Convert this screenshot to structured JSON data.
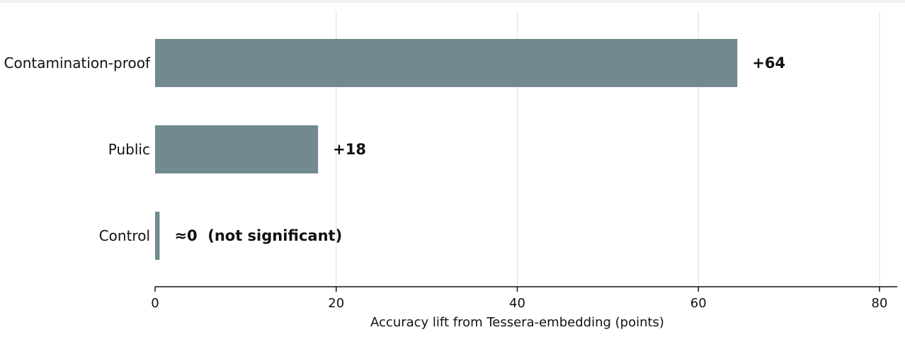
{
  "chart_data": {
    "type": "bar",
    "orientation": "horizontal",
    "categories": [
      "Contamination-proof",
      "Public",
      "Control"
    ],
    "values": [
      64.3,
      18.0,
      0.5
    ],
    "data_labels": [
      "+64",
      "+18",
      "≈0  (not significant)"
    ],
    "xlabel": "Accuracy lift from Tessera-embedding (points)",
    "ylabel": "",
    "title": "",
    "xlim": [
      0,
      80
    ],
    "xticks": [
      0,
      20,
      40,
      60,
      80
    ],
    "grid": "vertical",
    "bar_color": "#728a8f",
    "legend": "none"
  }
}
